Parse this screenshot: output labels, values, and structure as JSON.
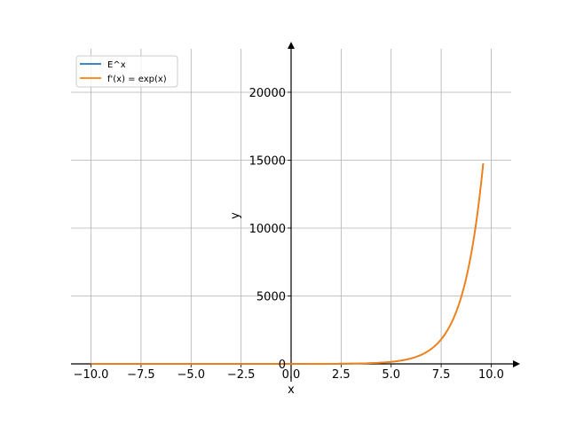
{
  "chart_data": {
    "type": "line",
    "title": "",
    "xlabel": "x",
    "ylabel": "y",
    "xlim": [
      -11,
      11
    ],
    "ylim": [
      0,
      23200
    ],
    "grid": true,
    "legend_position": "top-left",
    "x_ticks": [
      -10.0,
      -7.5,
      -5.0,
      -2.5,
      0.0,
      2.5,
      5.0,
      7.5,
      10.0
    ],
    "x_tick_labels": [
      "−10.0",
      "−7.5",
      "−5.0",
      "−2.5",
      "0.0",
      "2.5",
      "5.0",
      "7.5",
      "10.0"
    ],
    "y_ticks": [
      0,
      5000,
      10000,
      15000,
      20000
    ],
    "y_tick_labels": [
      "0",
      "5000",
      "10000",
      "15000",
      "20000"
    ],
    "series": [
      {
        "name": "E^x",
        "color": "#1f77b4",
        "function": "exp",
        "x_range": [
          -10,
          9.6
        ],
        "samples": [
          [
            -10,
            0.0
          ],
          [
            0,
            1
          ],
          [
            2.5,
            12.2
          ],
          [
            5,
            148.4
          ],
          [
            6,
            403.4
          ],
          [
            7,
            1096.6
          ],
          [
            7.5,
            1808.0
          ],
          [
            8,
            2981.0
          ],
          [
            8.5,
            4914.8
          ],
          [
            9,
            8103.1
          ],
          [
            9.6,
            14764.8
          ]
        ]
      },
      {
        "name": "f'(x) = exp(x)",
        "color": "#ff7f0e",
        "function": "exp",
        "x_range": [
          -10,
          9.6
        ],
        "samples": [
          [
            -10,
            0.0
          ],
          [
            0,
            1
          ],
          [
            2.5,
            12.2
          ],
          [
            5,
            148.4
          ],
          [
            6,
            403.4
          ],
          [
            7,
            1096.6
          ],
          [
            7.5,
            1808.0
          ],
          [
            8,
            2981.0
          ],
          [
            8.5,
            4914.8
          ],
          [
            9,
            8103.1
          ],
          [
            9.6,
            14764.8
          ]
        ]
      }
    ]
  }
}
